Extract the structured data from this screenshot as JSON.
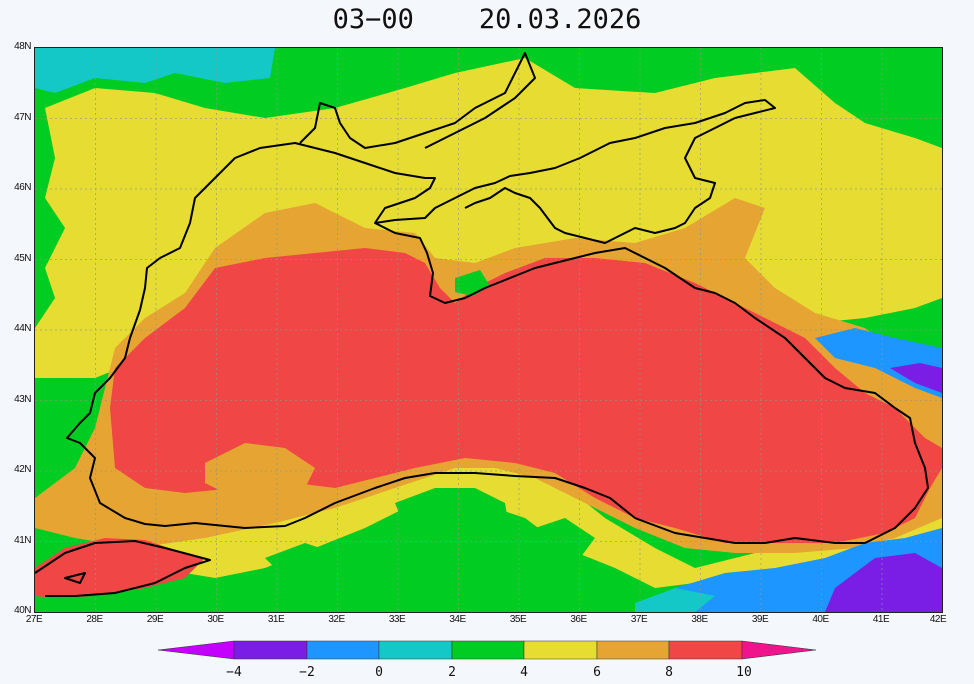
{
  "title": "03-00    20.03.2026",
  "y_ticks": [
    "48N",
    "47N",
    "46N",
    "45N",
    "44N",
    "43N",
    "42N",
    "41N",
    "40N"
  ],
  "x_ticks": [
    "27E",
    "28E",
    "29E",
    "30E",
    "31E",
    "32E",
    "33E",
    "34E",
    "35E",
    "36E",
    "37E",
    "38E",
    "39E",
    "40E",
    "41E",
    "42E"
  ],
  "colorbar": {
    "labels": [
      "-4",
      "-2",
      "0",
      "2",
      "4",
      "6",
      "8",
      "10"
    ],
    "colors": [
      "#c400ff",
      "#7a1ee6",
      "#1e96ff",
      "#14c8c8",
      "#00cc22",
      "#e6dc32",
      "#e6a532",
      "#f04646",
      "#f0148c"
    ]
  },
  "chart_data": {
    "type": "heatmap",
    "title": "03-00    20.03.2026",
    "xlim": [
      27,
      42
    ],
    "ylim": [
      40,
      48
    ],
    "x_ticks": [
      "27E",
      "28E",
      "29E",
      "30E",
      "31E",
      "32E",
      "33E",
      "34E",
      "35E",
      "36E",
      "37E",
      "38E",
      "39E",
      "40E",
      "41E",
      "42E"
    ],
    "y_ticks": [
      "40N",
      "41N",
      "42N",
      "43N",
      "44N",
      "45N",
      "46N",
      "47N",
      "48N"
    ],
    "colorbar_levels": [
      -4,
      -2,
      0,
      2,
      4,
      6,
      8,
      10
    ],
    "grid": true
  }
}
